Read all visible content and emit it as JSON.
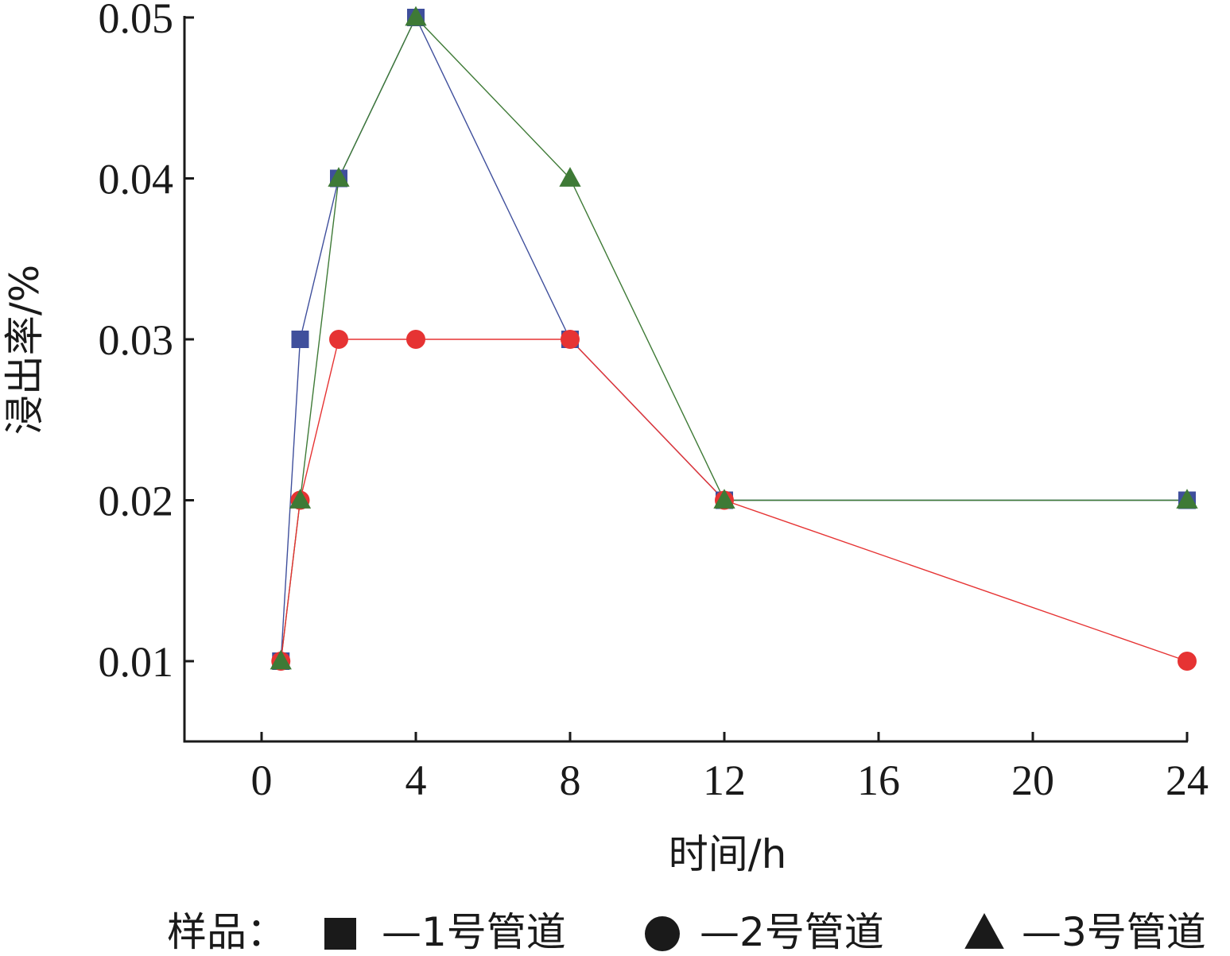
{
  "chart_data": {
    "type": "line",
    "xlabel": "时间/h",
    "ylabel": "浸出率/%",
    "x_ticks": [
      "0",
      "4",
      "8",
      "12",
      "16",
      "20",
      "24"
    ],
    "y_ticks": [
      "0.01",
      "0.02",
      "0.03",
      "0.04",
      "0.05"
    ],
    "ylim": [
      0.005,
      0.05
    ],
    "grid": false,
    "legend_position": "bottom",
    "legend_prefix": "样品：",
    "series": [
      {
        "name": "—1号管道",
        "number": "1",
        "marker": "square",
        "color": "#3f4f9c",
        "x": [
          "0.5",
          "1",
          "2",
          "4",
          "8",
          "12",
          "24"
        ],
        "y": [
          0.01,
          0.03,
          0.04,
          0.05,
          0.03,
          0.02,
          0.02
        ]
      },
      {
        "name": "—2号管道",
        "number": "2",
        "marker": "circle",
        "color": "#e63333",
        "x": [
          "0.5",
          "1",
          "2",
          "4",
          "8",
          "12",
          "24"
        ],
        "y": [
          0.01,
          0.02,
          0.03,
          0.03,
          0.03,
          0.02,
          0.01
        ]
      },
      {
        "name": "—3号管道",
        "number": "3",
        "marker": "triangle",
        "color": "#3e7a36",
        "x": [
          "0.5",
          "1",
          "2",
          "4",
          "8",
          "12",
          "24"
        ],
        "y": [
          0.01,
          0.02,
          0.04,
          0.05,
          0.04,
          0.02,
          0.02
        ]
      }
    ]
  }
}
